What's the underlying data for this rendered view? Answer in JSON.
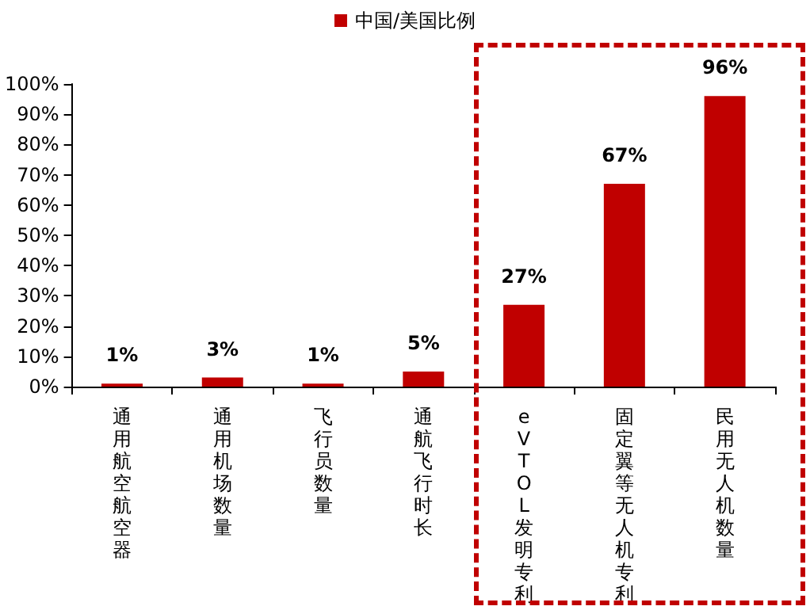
{
  "chart_data": {
    "type": "bar",
    "categories": [
      "通用航空航空器",
      "通用机场数量",
      "飞行员数量",
      "通航飞行时长",
      "eVTOL发明专利",
      "固定翼等无人机专利",
      "民用无人机数量"
    ],
    "series": [
      {
        "name": "中国/美国比例",
        "color": "#c00000",
        "values": [
          1,
          3,
          1,
          5,
          27,
          67,
          96
        ],
        "value_labels": [
          "1%",
          "3%",
          "1%",
          "5%",
          "27%",
          "67%",
          "96%"
        ]
      }
    ],
    "ylim": [
      0,
      100
    ],
    "yticks": [
      {
        "value": 0,
        "label": "0%"
      },
      {
        "value": 10,
        "label": "10%"
      },
      {
        "value": 20,
        "label": "20%"
      },
      {
        "value": 30,
        "label": "30%"
      },
      {
        "value": 40,
        "label": "40%"
      },
      {
        "value": 50,
        "label": "50%"
      },
      {
        "value": 60,
        "label": "60%"
      },
      {
        "value": 70,
        "label": "70%"
      },
      {
        "value": 80,
        "label": "80%"
      },
      {
        "value": 90,
        "label": "90%"
      },
      {
        "value": 100,
        "label": "100%"
      }
    ],
    "grid": false,
    "legend": "top"
  }
}
